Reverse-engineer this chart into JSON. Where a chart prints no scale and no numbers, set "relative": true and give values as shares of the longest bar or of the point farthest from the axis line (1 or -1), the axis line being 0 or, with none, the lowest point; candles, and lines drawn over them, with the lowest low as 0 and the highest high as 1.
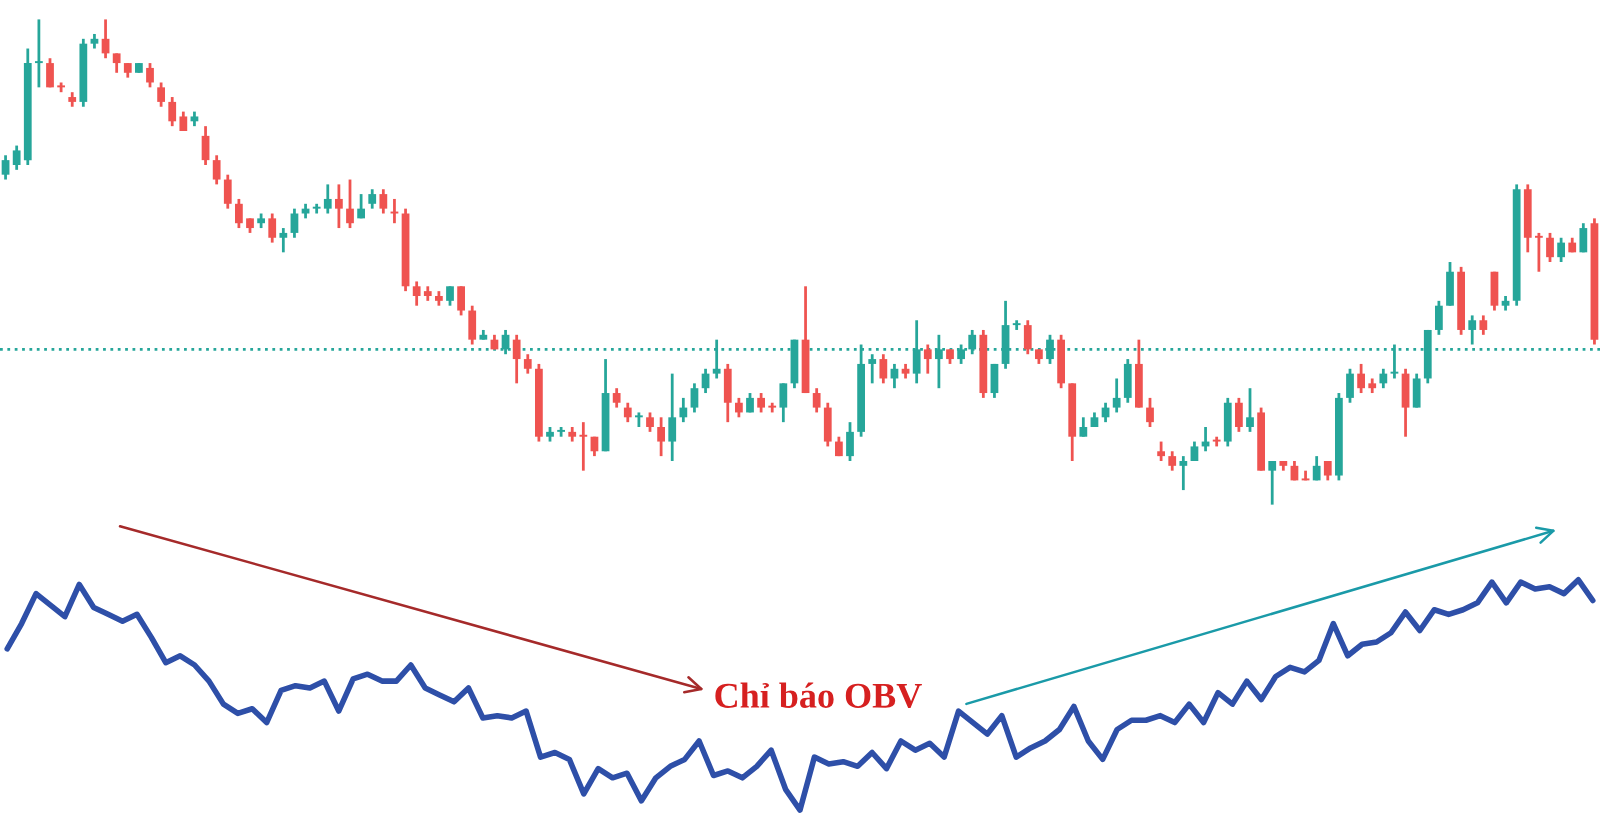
{
  "chart_data": [
    {
      "type": "candlestick",
      "relative": true,
      "categories": [
        null,
        null,
        null,
        null,
        null,
        null,
        null,
        null,
        null,
        null,
        null,
        null,
        null,
        null,
        null,
        null,
        null,
        null,
        null,
        null,
        null,
        null,
        null,
        null,
        null,
        null,
        null,
        null,
        null,
        null,
        null,
        null,
        null,
        null,
        null,
        null,
        null,
        null,
        null,
        null,
        null,
        null,
        null,
        null,
        null,
        null,
        null,
        null,
        null,
        null,
        null,
        null,
        null,
        null,
        null,
        null,
        null,
        null,
        null,
        null,
        null,
        null,
        null,
        null,
        null,
        null,
        null,
        null,
        null,
        null,
        null,
        null,
        null,
        null,
        null,
        null,
        null,
        null,
        null,
        null,
        null,
        null,
        null,
        null,
        null,
        null,
        null,
        null,
        null,
        null,
        null,
        null,
        null,
        null,
        null,
        null,
        null,
        null,
        null,
        null,
        null,
        null,
        null,
        null,
        null,
        null,
        null,
        null,
        null,
        null,
        null,
        null,
        null,
        null,
        null,
        null,
        null,
        null,
        null,
        null,
        null,
        null,
        null,
        null,
        null,
        null,
        null,
        null,
        null,
        null,
        null,
        null,
        null,
        null,
        null,
        null,
        null,
        null,
        null,
        null,
        null,
        null,
        null,
        null
      ],
      "ohlc": [
        [
          0.68,
          0.72,
          0.67,
          0.71
        ],
        [
          0.7,
          0.74,
          0.69,
          0.73
        ],
        [
          0.71,
          0.94,
          0.7,
          0.91
        ],
        [
          0.91,
          1.0,
          0.86,
          0.91
        ],
        [
          0.91,
          0.92,
          0.86,
          0.86
        ],
        [
          0.86,
          0.87,
          0.85,
          0.86
        ],
        [
          0.84,
          0.85,
          0.82,
          0.83
        ],
        [
          0.83,
          0.96,
          0.82,
          0.95
        ],
        [
          0.95,
          0.97,
          0.94,
          0.96
        ],
        [
          0.96,
          1.0,
          0.92,
          0.93
        ],
        [
          0.93,
          0.93,
          0.89,
          0.91
        ],
        [
          0.91,
          0.91,
          0.88,
          0.89
        ],
        [
          0.89,
          0.91,
          0.89,
          0.91
        ],
        [
          0.9,
          0.91,
          0.86,
          0.87
        ],
        [
          0.86,
          0.87,
          0.82,
          0.83
        ],
        [
          0.83,
          0.84,
          0.78,
          0.79
        ],
        [
          0.8,
          0.81,
          0.77,
          0.77
        ],
        [
          0.79,
          0.81,
          0.78,
          0.8
        ],
        [
          0.76,
          0.78,
          0.7,
          0.71
        ],
        [
          0.71,
          0.72,
          0.66,
          0.67
        ],
        [
          0.67,
          0.68,
          0.61,
          0.62
        ],
        [
          0.62,
          0.63,
          0.57,
          0.58
        ],
        [
          0.59,
          0.59,
          0.56,
          0.57
        ],
        [
          0.58,
          0.6,
          0.57,
          0.59
        ],
        [
          0.59,
          0.6,
          0.54,
          0.55
        ],
        [
          0.55,
          0.57,
          0.52,
          0.56
        ],
        [
          0.56,
          0.61,
          0.55,
          0.6
        ],
        [
          0.6,
          0.62,
          0.59,
          0.61
        ],
        [
          0.61,
          0.62,
          0.6,
          0.61
        ],
        [
          0.61,
          0.66,
          0.6,
          0.63
        ],
        [
          0.63,
          0.66,
          0.57,
          0.61
        ],
        [
          0.61,
          0.67,
          0.57,
          0.58
        ],
        [
          0.59,
          0.64,
          0.59,
          0.61
        ],
        [
          0.62,
          0.65,
          0.61,
          0.64
        ],
        [
          0.64,
          0.65,
          0.6,
          0.61
        ],
        [
          0.6,
          0.63,
          0.58,
          0.6
        ],
        [
          0.6,
          0.61,
          0.44,
          0.45
        ],
        [
          0.45,
          0.46,
          0.41,
          0.43
        ],
        [
          0.44,
          0.45,
          0.42,
          0.43
        ],
        [
          0.43,
          0.44,
          0.41,
          0.42
        ],
        [
          0.42,
          0.45,
          0.41,
          0.45
        ],
        [
          0.45,
          0.45,
          0.39,
          0.4
        ],
        [
          0.4,
          0.41,
          0.33,
          0.34
        ],
        [
          0.34,
          0.36,
          0.34,
          0.35
        ],
        [
          0.34,
          0.35,
          0.32,
          0.32
        ],
        [
          0.32,
          0.36,
          0.31,
          0.35
        ],
        [
          0.34,
          0.35,
          0.25,
          0.3
        ],
        [
          0.3,
          0.31,
          0.27,
          0.28
        ],
        [
          0.28,
          0.29,
          0.13,
          0.14
        ],
        [
          0.14,
          0.16,
          0.13,
          0.15
        ],
        [
          0.15,
          0.16,
          0.14,
          0.15
        ],
        [
          0.15,
          0.16,
          0.13,
          0.14
        ],
        [
          0.14,
          0.17,
          0.07,
          0.14
        ],
        [
          0.14,
          0.14,
          0.1,
          0.11
        ],
        [
          0.11,
          0.3,
          0.11,
          0.23
        ],
        [
          0.23,
          0.24,
          0.2,
          0.21
        ],
        [
          0.2,
          0.21,
          0.17,
          0.18
        ],
        [
          0.18,
          0.19,
          0.16,
          0.18
        ],
        [
          0.18,
          0.19,
          0.15,
          0.16
        ],
        [
          0.16,
          0.18,
          0.1,
          0.13
        ],
        [
          0.13,
          0.27,
          0.09,
          0.18
        ],
        [
          0.18,
          0.22,
          0.17,
          0.2
        ],
        [
          0.2,
          0.25,
          0.19,
          0.24
        ],
        [
          0.24,
          0.28,
          0.23,
          0.27
        ],
        [
          0.27,
          0.34,
          0.26,
          0.28
        ],
        [
          0.28,
          0.29,
          0.17,
          0.21
        ],
        [
          0.21,
          0.22,
          0.18,
          0.19
        ],
        [
          0.19,
          0.23,
          0.19,
          0.22
        ],
        [
          0.22,
          0.23,
          0.19,
          0.2
        ],
        [
          0.2,
          0.21,
          0.19,
          0.2
        ],
        [
          0.2,
          0.25,
          0.17,
          0.25
        ],
        [
          0.25,
          0.34,
          0.24,
          0.34
        ],
        [
          0.34,
          0.45,
          0.23,
          0.23
        ],
        [
          0.23,
          0.24,
          0.19,
          0.2
        ],
        [
          0.2,
          0.21,
          0.12,
          0.13
        ],
        [
          0.13,
          0.14,
          0.1,
          0.1
        ],
        [
          0.1,
          0.17,
          0.09,
          0.15
        ],
        [
          0.15,
          0.33,
          0.14,
          0.29
        ],
        [
          0.29,
          0.31,
          0.25,
          0.3
        ],
        [
          0.3,
          0.31,
          0.25,
          0.26
        ],
        [
          0.26,
          0.29,
          0.24,
          0.28
        ],
        [
          0.28,
          0.29,
          0.26,
          0.27
        ],
        [
          0.27,
          0.38,
          0.25,
          0.32
        ],
        [
          0.32,
          0.33,
          0.27,
          0.3
        ],
        [
          0.3,
          0.35,
          0.24,
          0.32
        ],
        [
          0.32,
          0.32,
          0.29,
          0.3
        ],
        [
          0.3,
          0.33,
          0.29,
          0.32
        ],
        [
          0.32,
          0.36,
          0.31,
          0.35
        ],
        [
          0.35,
          0.36,
          0.22,
          0.23
        ],
        [
          0.23,
          0.29,
          0.22,
          0.29
        ],
        [
          0.29,
          0.42,
          0.28,
          0.37
        ],
        [
          0.37,
          0.38,
          0.36,
          0.37
        ],
        [
          0.37,
          0.38,
          0.31,
          0.32
        ],
        [
          0.32,
          0.32,
          0.29,
          0.3
        ],
        [
          0.3,
          0.35,
          0.29,
          0.34
        ],
        [
          0.34,
          0.35,
          0.24,
          0.25
        ],
        [
          0.25,
          0.25,
          0.09,
          0.14
        ],
        [
          0.14,
          0.18,
          0.14,
          0.16
        ],
        [
          0.16,
          0.19,
          0.16,
          0.18
        ],
        [
          0.18,
          0.21,
          0.17,
          0.2
        ],
        [
          0.2,
          0.26,
          0.19,
          0.22
        ],
        [
          0.22,
          0.3,
          0.21,
          0.29
        ],
        [
          0.29,
          0.34,
          0.2,
          0.2
        ],
        [
          0.2,
          0.22,
          0.16,
          0.17
        ],
        [
          0.11,
          0.13,
          0.09,
          0.1
        ],
        [
          0.1,
          0.11,
          0.07,
          0.08
        ],
        [
          0.08,
          0.1,
          0.03,
          0.09
        ],
        [
          0.09,
          0.13,
          0.09,
          0.12
        ],
        [
          0.12,
          0.16,
          0.11,
          0.13
        ],
        [
          0.13,
          0.14,
          0.12,
          0.13
        ],
        [
          0.13,
          0.22,
          0.12,
          0.21
        ],
        [
          0.21,
          0.22,
          0.15,
          0.16
        ],
        [
          0.16,
          0.24,
          0.15,
          0.18
        ],
        [
          0.19,
          0.2,
          0.07,
          0.07
        ],
        [
          0.07,
          0.09,
          0.0,
          0.09
        ],
        [
          0.09,
          0.09,
          0.07,
          0.08
        ],
        [
          0.08,
          0.09,
          0.05,
          0.05
        ],
        [
          0.05,
          0.07,
          0.05,
          0.05
        ],
        [
          0.05,
          0.1,
          0.05,
          0.08
        ],
        [
          0.09,
          0.09,
          0.05,
          0.06
        ],
        [
          0.06,
          0.23,
          0.05,
          0.22
        ],
        [
          0.22,
          0.28,
          0.21,
          0.27
        ],
        [
          0.27,
          0.29,
          0.23,
          0.24
        ],
        [
          0.25,
          0.26,
          0.23,
          0.24
        ],
        [
          0.25,
          0.28,
          0.24,
          0.27
        ],
        [
          0.27,
          0.33,
          0.26,
          0.27
        ],
        [
          0.27,
          0.28,
          0.14,
          0.2
        ],
        [
          0.2,
          0.27,
          0.2,
          0.26
        ],
        [
          0.26,
          0.36,
          0.25,
          0.36
        ],
        [
          0.36,
          0.42,
          0.35,
          0.41
        ],
        [
          0.41,
          0.5,
          0.41,
          0.48
        ],
        [
          0.48,
          0.49,
          0.35,
          0.36
        ],
        [
          0.36,
          0.39,
          0.33,
          0.38
        ],
        [
          0.38,
          0.39,
          0.35,
          0.36
        ],
        [
          0.48,
          0.48,
          0.4,
          0.41
        ],
        [
          0.41,
          0.43,
          0.4,
          0.42
        ],
        [
          0.42,
          0.66,
          0.41,
          0.65
        ],
        [
          0.65,
          0.66,
          0.52,
          0.55
        ],
        [
          0.55,
          0.56,
          0.48,
          0.55
        ],
        [
          0.55,
          0.56,
          0.5,
          0.51
        ],
        [
          0.51,
          0.55,
          0.5,
          0.54
        ],
        [
          0.54,
          0.55,
          0.52,
          0.52
        ],
        [
          0.52,
          0.58,
          0.52,
          0.57
        ],
        [
          0.58,
          0.59,
          0.33,
          0.34
        ]
      ],
      "colors": [
        "#26a69a",
        "#26a69a",
        "#26a69a",
        "#26a69a",
        "#ef5350",
        "#ef5350",
        "#ef5350",
        "#26a69a",
        "#26a69a",
        "#ef5350",
        "#ef5350",
        "#ef5350",
        "#26a69a",
        "#ef5350",
        "#ef5350",
        "#ef5350",
        "#ef5350",
        "#26a69a",
        "#ef5350",
        "#ef5350",
        "#ef5350",
        "#ef5350",
        "#ef5350",
        "#26a69a",
        "#ef5350",
        "#26a69a",
        "#26a69a",
        "#26a69a",
        "#26a69a",
        "#26a69a",
        "#ef5350",
        "#ef5350",
        "#26a69a",
        "#26a69a",
        "#ef5350",
        "#ef5350",
        "#ef5350",
        "#ef5350",
        "#ef5350",
        "#ef5350",
        "#26a69a",
        "#ef5350",
        "#ef5350",
        "#26a69a",
        "#ef5350",
        "#26a69a",
        "#ef5350",
        "#ef5350",
        "#ef5350",
        "#26a69a",
        "#26a69a",
        "#ef5350",
        "#ef5350",
        "#ef5350",
        "#26a69a",
        "#ef5350",
        "#ef5350",
        "#26a69a",
        "#ef5350",
        "#ef5350",
        "#26a69a",
        "#26a69a",
        "#26a69a",
        "#26a69a",
        "#26a69a",
        "#ef5350",
        "#ef5350",
        "#26a69a",
        "#ef5350",
        "#ef5350",
        "#26a69a",
        "#26a69a",
        "#ef5350",
        "#ef5350",
        "#ef5350",
        "#ef5350",
        "#26a69a",
        "#26a69a",
        "#26a69a",
        "#ef5350",
        "#26a69a",
        "#ef5350",
        "#26a69a",
        "#ef5350",
        "#26a69a",
        "#ef5350",
        "#26a69a",
        "#26a69a",
        "#ef5350",
        "#26a69a",
        "#26a69a",
        "#26a69a",
        "#ef5350",
        "#ef5350",
        "#26a69a",
        "#ef5350",
        "#ef5350",
        "#26a69a",
        "#26a69a",
        "#26a69a",
        "#26a69a",
        "#26a69a",
        "#ef5350",
        "#ef5350",
        "#ef5350",
        "#ef5350",
        "#26a69a",
        "#26a69a",
        "#26a69a",
        "#ef5350",
        "#26a69a",
        "#ef5350",
        "#26a69a",
        "#ef5350",
        "#26a69a",
        "#ef5350",
        "#ef5350",
        "#ef5350",
        "#26a69a",
        "#ef5350",
        "#26a69a",
        "#26a69a",
        "#ef5350",
        "#ef5350",
        "#26a69a",
        "#26a69a",
        "#ef5350",
        "#26a69a",
        "#26a69a",
        "#26a69a",
        "#26a69a",
        "#ef5350",
        "#26a69a",
        "#ef5350",
        "#ef5350",
        "#26a69a",
        "#26a69a",
        "#ef5350",
        "#ef5350",
        "#ef5350",
        "#26a69a",
        "#ef5350",
        "#26a69a",
        "#ef5350"
      ],
      "ref_lines": [
        {
          "axis": "y",
          "value": 0.32,
          "color": "#26a69a",
          "line_style": "dotted"
        }
      ]
    },
    {
      "type": "line",
      "relative": true,
      "categories": [
        null,
        null,
        null,
        null,
        null,
        null,
        null,
        null,
        null,
        null,
        null,
        null,
        null,
        null,
        null,
        null,
        null,
        null,
        null,
        null,
        null,
        null,
        null,
        null,
        null,
        null,
        null,
        null,
        null,
        null,
        null,
        null,
        null,
        null,
        null,
        null,
        null,
        null,
        null,
        null,
        null,
        null,
        null,
        null,
        null,
        null,
        null,
        null,
        null,
        null,
        null,
        null,
        null,
        null,
        null,
        null,
        null,
        null,
        null,
        null,
        null,
        null,
        null,
        null,
        null,
        null,
        null,
        null,
        null,
        null,
        null,
        null,
        null,
        null,
        null,
        null,
        null,
        null,
        null,
        null,
        null,
        null,
        null,
        null,
        null,
        null,
        null,
        null,
        null,
        null,
        null,
        null,
        null,
        null,
        null,
        null,
        null,
        null,
        null,
        null,
        null,
        null,
        null,
        null,
        null,
        null,
        null,
        null,
        null,
        null,
        null
      ],
      "series": [
        {
          "color": "#2e4fa8",
          "values": [
            0.7,
            0.81,
            0.94,
            0.89,
            0.84,
            0.98,
            0.88,
            0.85,
            0.82,
            0.85,
            0.75,
            0.64,
            0.67,
            0.63,
            0.56,
            0.46,
            0.42,
            0.44,
            0.38,
            0.52,
            0.54,
            0.53,
            0.56,
            0.43,
            0.57,
            0.59,
            0.56,
            0.56,
            0.63,
            0.53,
            0.5,
            0.47,
            0.53,
            0.4,
            0.41,
            0.4,
            0.43,
            0.23,
            0.25,
            0.22,
            0.07,
            0.18,
            0.14,
            0.16,
            0.04,
            0.14,
            0.19,
            0.22,
            0.3,
            0.15,
            0.17,
            0.14,
            0.19,
            0.26,
            0.09,
            0.0,
            0.23,
            0.2,
            0.21,
            0.19,
            0.25,
            0.18,
            0.3,
            0.26,
            0.29,
            0.23,
            0.43,
            0.38,
            0.33,
            0.41,
            0.23,
            0.27,
            0.3,
            0.35,
            0.45,
            0.3,
            0.22,
            0.35,
            0.39,
            0.39,
            0.41,
            0.38,
            0.46,
            0.38,
            0.51,
            0.46,
            0.56,
            0.48,
            0.58,
            0.62,
            0.6,
            0.65,
            0.81,
            0.67,
            0.72,
            0.73,
            0.77,
            0.86,
            0.78,
            0.87,
            0.85,
            0.87,
            0.9,
            0.99,
            0.9,
            0.99,
            0.96,
            0.97,
            0.94,
            1.0,
            0.91
          ]
        }
      ],
      "annotations": [
        "Chỉ báo OBV"
      ]
    }
  ]
}
